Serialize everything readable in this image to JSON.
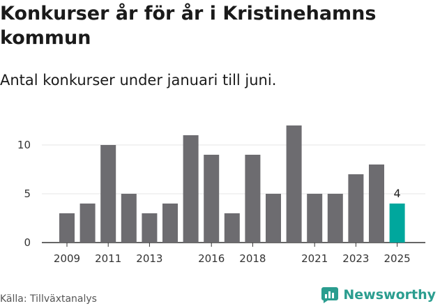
{
  "title": "Konkurser år för år i Kristinehamns kommun",
  "subtitle": "Antal konkurser under januari till juni.",
  "source": "Källa: Tillväxtanalys",
  "brand": "Newsworthy",
  "colors": {
    "bar": "#6d6c70",
    "highlight": "#00a79d",
    "grid": "#e6e6e6",
    "brand": "#2a9d8f"
  },
  "chart_data": {
    "type": "bar",
    "categories": [
      "2009",
      "2010",
      "2011",
      "2012",
      "2013",
      "2014",
      "2015",
      "2016",
      "2017",
      "2018",
      "2019",
      "2020",
      "2021",
      "2022",
      "2023",
      "2024",
      "2025"
    ],
    "values": [
      3,
      4,
      10,
      5,
      3,
      4,
      11,
      9,
      3,
      9,
      5,
      12,
      5,
      5,
      7,
      8,
      4
    ],
    "x_tick_labels": [
      "2009",
      "2011",
      "2013",
      "2016",
      "2018",
      "2021",
      "2023",
      "2025"
    ],
    "y_ticks": [
      0,
      5,
      10
    ],
    "ylim": [
      0,
      12
    ],
    "highlight_category": "2025",
    "data_labels": [
      {
        "category": "2025",
        "text": "4"
      }
    ],
    "grid": true,
    "legend": "none"
  }
}
